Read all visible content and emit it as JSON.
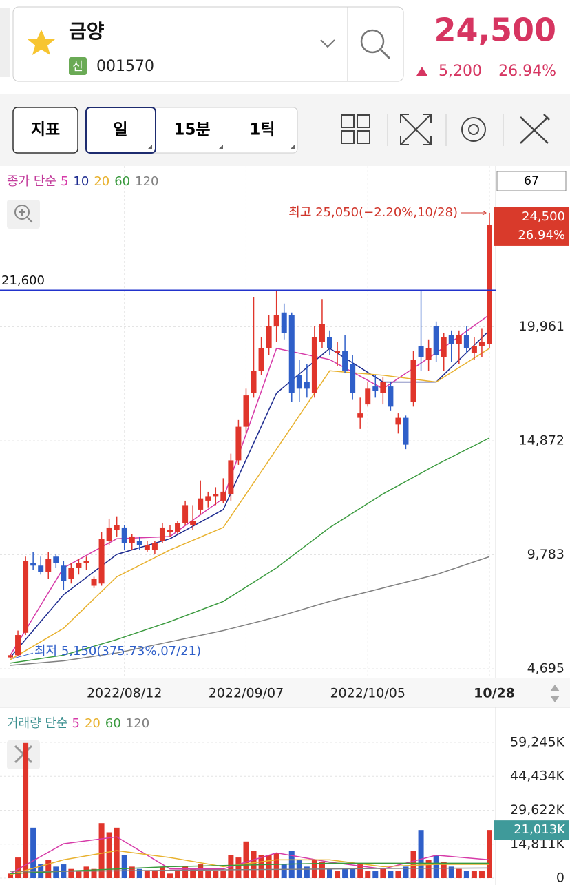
{
  "header": {
    "name": "금양",
    "badge": "신",
    "code": "001570",
    "price": "24,500",
    "change": "5,200",
    "change_pct": "26.94%"
  },
  "toolbar": {
    "indicator": "지표",
    "periods": [
      "일",
      "15분",
      "1틱"
    ]
  },
  "count": "67",
  "chart_data": [
    {
      "type": "candlestick",
      "legend_title": "종가 단순",
      "categories": [
        null,
        null,
        null,
        null,
        null,
        null,
        null,
        null,
        null,
        null,
        null,
        null,
        null,
        null,
        null,
        "2022/08/12",
        null,
        null,
        null,
        null,
        null,
        null,
        null,
        null,
        null,
        null,
        null,
        null,
        null,
        null,
        null,
        "2022/09/07",
        null,
        null,
        null,
        null,
        null,
        null,
        null,
        null,
        null,
        null,
        null,
        null,
        null,
        null,
        null,
        "2022/10/05",
        null,
        null,
        null,
        null,
        null,
        null,
        null,
        null,
        null,
        null,
        null,
        null,
        null,
        null,
        null,
        "10/28"
      ],
      "open": [
        5200,
        5300,
        6300,
        9400,
        9300,
        9000,
        9700,
        9300,
        8700,
        9200,
        9400,
        8400,
        8500,
        10400,
        10900,
        11000,
        10300,
        10400,
        10000,
        10000,
        10400,
        10800,
        10800,
        11200,
        11100,
        11800,
        12200,
        12400,
        12200,
        12500,
        14000,
        15500,
        17000,
        18000,
        19000,
        20000,
        20600,
        20500,
        17800,
        17500,
        17000,
        19300,
        19500,
        18800,
        18900,
        18300,
        15900,
        16500,
        17300,
        17000,
        17300,
        15600,
        15900,
        16600,
        19100,
        18500,
        20000,
        18600,
        19600,
        19200,
        19600,
        18800,
        19100,
        19200
      ],
      "high": [
        5350,
        6400,
        9700,
        9900,
        9700,
        9900,
        9800,
        9500,
        9400,
        9600,
        9700,
        8800,
        10800,
        11400,
        11500,
        11100,
        10700,
        10600,
        10400,
        10400,
        11200,
        11100,
        11300,
        12200,
        12000,
        13100,
        12600,
        12800,
        13200,
        14300,
        15800,
        17200,
        21300,
        19500,
        20500,
        21600,
        21000,
        20600,
        18500,
        18300,
        20000,
        21200,
        19800,
        19300,
        19600,
        18700,
        16800,
        17500,
        17800,
        17700,
        17500,
        16100,
        16000,
        18900,
        21600,
        19400,
        20200,
        19700,
        19800,
        19800,
        20000,
        19500,
        19900,
        25050
      ],
      "low": [
        5150,
        5250,
        6200,
        9100,
        8900,
        8700,
        9200,
        8200,
        8500,
        8900,
        9100,
        8300,
        8400,
        10200,
        10600,
        10000,
        10000,
        10000,
        9900,
        9800,
        10300,
        10600,
        10700,
        11100,
        10900,
        11600,
        11900,
        12000,
        12100,
        12200,
        13800,
        15200,
        16800,
        17800,
        18700,
        19300,
        19400,
        16600,
        16600,
        16800,
        16800,
        19000,
        18700,
        18200,
        17900,
        16700,
        15400,
        16400,
        16800,
        16500,
        16200,
        15200,
        14500,
        16400,
        18000,
        18000,
        18400,
        18000,
        18400,
        18300,
        18800,
        18500,
        18600,
        19000
      ],
      "close": [
        5300,
        6200,
        9500,
        9300,
        9000,
        9600,
        9400,
        8600,
        9200,
        9400,
        9500,
        8700,
        10500,
        11000,
        11100,
        10300,
        10600,
        10200,
        10200,
        10300,
        11000,
        10900,
        11200,
        12000,
        11300,
        12300,
        12400,
        12500,
        12600,
        14000,
        15500,
        16900,
        18000,
        19000,
        20000,
        20500,
        19700,
        17000,
        17200,
        17200,
        19500,
        20100,
        19000,
        18900,
        18000,
        17000,
        16100,
        17200,
        17100,
        17500,
        16400,
        15900,
        14700,
        18500,
        18600,
        19000,
        18700,
        19500,
        19200,
        19600,
        19000,
        19100,
        19300,
        24500
      ],
      "up_color": "#e0352b",
      "down_color": "#2f5fc9",
      "ma": {
        "x": [
          0,
          7,
          14,
          21,
          28,
          35,
          42,
          49,
          56,
          63
        ],
        "series": [
          {
            "name": "5",
            "color": "#d63aa8",
            "values": [
              5300,
              9200,
              10500,
              10600,
              12300,
              19000,
              18500,
              17200,
              18800,
              20500
            ]
          },
          {
            "name": "10",
            "color": "#1d2b8f",
            "values": [
              5200,
              8000,
              9800,
              10500,
              11800,
              17000,
              19000,
              17500,
              17500,
              19800
            ]
          },
          {
            "name": "20",
            "color": "#e8b12e",
            "values": [
              5100,
              6500,
              8800,
              10000,
              11000,
              14500,
              18000,
              17800,
              17500,
              19000
            ]
          },
          {
            "name": "60",
            "color": "#3a9a3e",
            "values": [
              4950,
              5300,
              6000,
              6800,
              7700,
              9200,
              11000,
              12500,
              13800,
              15000
            ]
          },
          {
            "name": "120",
            "color": "#808080",
            "values": [
              4850,
              5050,
              5400,
              5900,
              6400,
              7000,
              7700,
              8300,
              8900,
              9700
            ]
          }
        ]
      },
      "ylim": [
        4418,
        25328
      ],
      "yticks": [
        {
          "value": 4695,
          "label": "4,695"
        },
        {
          "value": 9783,
          "label": "9,783"
        },
        {
          "value": 14872,
          "label": "14,872"
        },
        {
          "value": 19961,
          "label": "19,961"
        }
      ],
      "hline": {
        "value": 21600,
        "label": "21,600"
      },
      "high_label": "최고 25,050(−2.20%,10/28)",
      "low_label": "최저 5,150(375.73%,07/21)",
      "last_label": "24,500",
      "last_pct": "26.94%"
    },
    {
      "type": "bar",
      "legend_title": "거래량 단순",
      "values": [
        2000,
        9000,
        59000,
        22000,
        6000,
        8000,
        5000,
        6000,
        4000,
        3000,
        5000,
        4000,
        24000,
        20000,
        22000,
        10000,
        5000,
        4000,
        3000,
        3000,
        5000,
        2000,
        3000,
        5000,
        4000,
        6000,
        3000,
        3000,
        3000,
        10000,
        9000,
        16000,
        12000,
        10000,
        10000,
        11000,
        6000,
        12000,
        8000,
        5000,
        8000,
        7000,
        4000,
        3000,
        4000,
        4000,
        6000,
        3000,
        3000,
        4000,
        3000,
        3000,
        5000,
        12000,
        21000,
        8000,
        10000,
        7000,
        5000,
        4000,
        3000,
        3000,
        3000,
        21013
      ],
      "ma": {
        "x": [
          0,
          7,
          14,
          21,
          28,
          35,
          42,
          49,
          56,
          63
        ],
        "series": [
          {
            "name": "5",
            "color": "#d63aa8",
            "values": [
              2000,
              15000,
              18000,
              4000,
              4000,
              11000,
              7000,
              4000,
              10000,
              8000
            ]
          },
          {
            "name": "20",
            "color": "#e8b12e",
            "values": [
              1500,
              8000,
              12000,
              9000,
              5000,
              8000,
              8000,
              5000,
              6000,
              6000
            ]
          },
          {
            "name": "60",
            "color": "#3a9a3e",
            "values": [
              2000,
              3000,
              4000,
              5000,
              5500,
              6000,
              6500,
              6500,
              6500,
              6500
            ]
          },
          {
            "name": "120",
            "color": "#808080",
            "values": [
              3000,
              3000,
              3200,
              3400,
              3600,
              3800,
              4000,
              4200,
              4300,
              4400
            ]
          }
        ]
      },
      "ylim": [
        0,
        59245
      ],
      "yticks": [
        {
          "value": 0,
          "label": "0"
        },
        {
          "value": 14811,
          "label": "14,811K"
        },
        {
          "value": 29622,
          "label": "29,622K"
        },
        {
          "value": 44434,
          "label": "44,434K"
        },
        {
          "value": 59245,
          "label": "59,245K"
        }
      ],
      "last_label": "21,013K"
    }
  ]
}
